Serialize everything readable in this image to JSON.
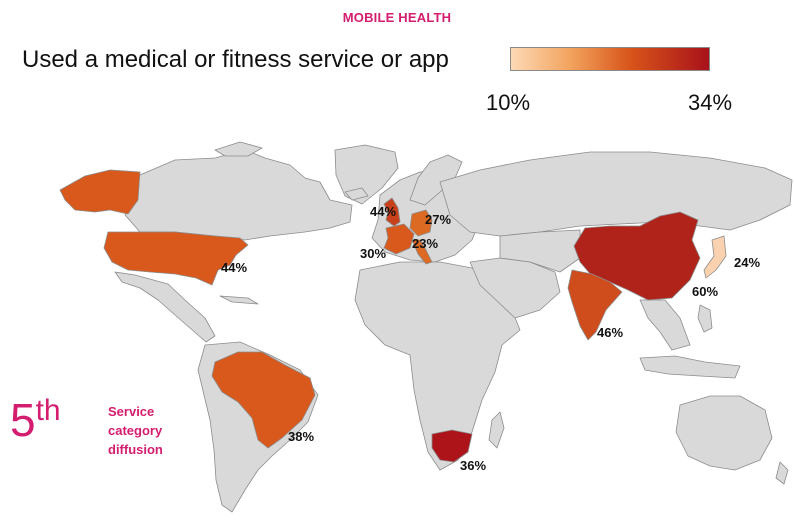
{
  "header": "MOBILE HEALTH",
  "subtitle": "Used a medical or fitness service or app",
  "legend": {
    "min_label": "10%",
    "max_label": "34%",
    "colors": [
      "#fdd9b5",
      "#f2a35e",
      "#d8551a",
      "#a8121a"
    ]
  },
  "colors": {
    "land": "#d9d9d9",
    "border": "#8c8c8c",
    "accent": "#d41d6f"
  },
  "countries": [
    {
      "name": "United States",
      "label": "44%",
      "color": "#d8591b"
    },
    {
      "name": "Brazil",
      "label": "38%",
      "color": "#d8591b"
    },
    {
      "name": "United Kingdom",
      "label": "44%",
      "color": "#c8411a"
    },
    {
      "name": "Germany",
      "label": "27%",
      "color": "#dd6a22"
    },
    {
      "name": "France",
      "label": "30%",
      "color": "#d8591b"
    },
    {
      "name": "Italy",
      "label": "23%",
      "color": "#dd6a22"
    },
    {
      "name": "China",
      "label": "60%",
      "color": "#b0231a"
    },
    {
      "name": "India",
      "label": "46%",
      "color": "#cf4d1c"
    },
    {
      "name": "Japan",
      "label": "24%",
      "color": "#fbd2b0"
    },
    {
      "name": "South Africa",
      "label": "36%",
      "color": "#ad141a"
    }
  ],
  "rank": {
    "number": "5",
    "suffix": "th",
    "note": "Service category diffusion"
  }
}
